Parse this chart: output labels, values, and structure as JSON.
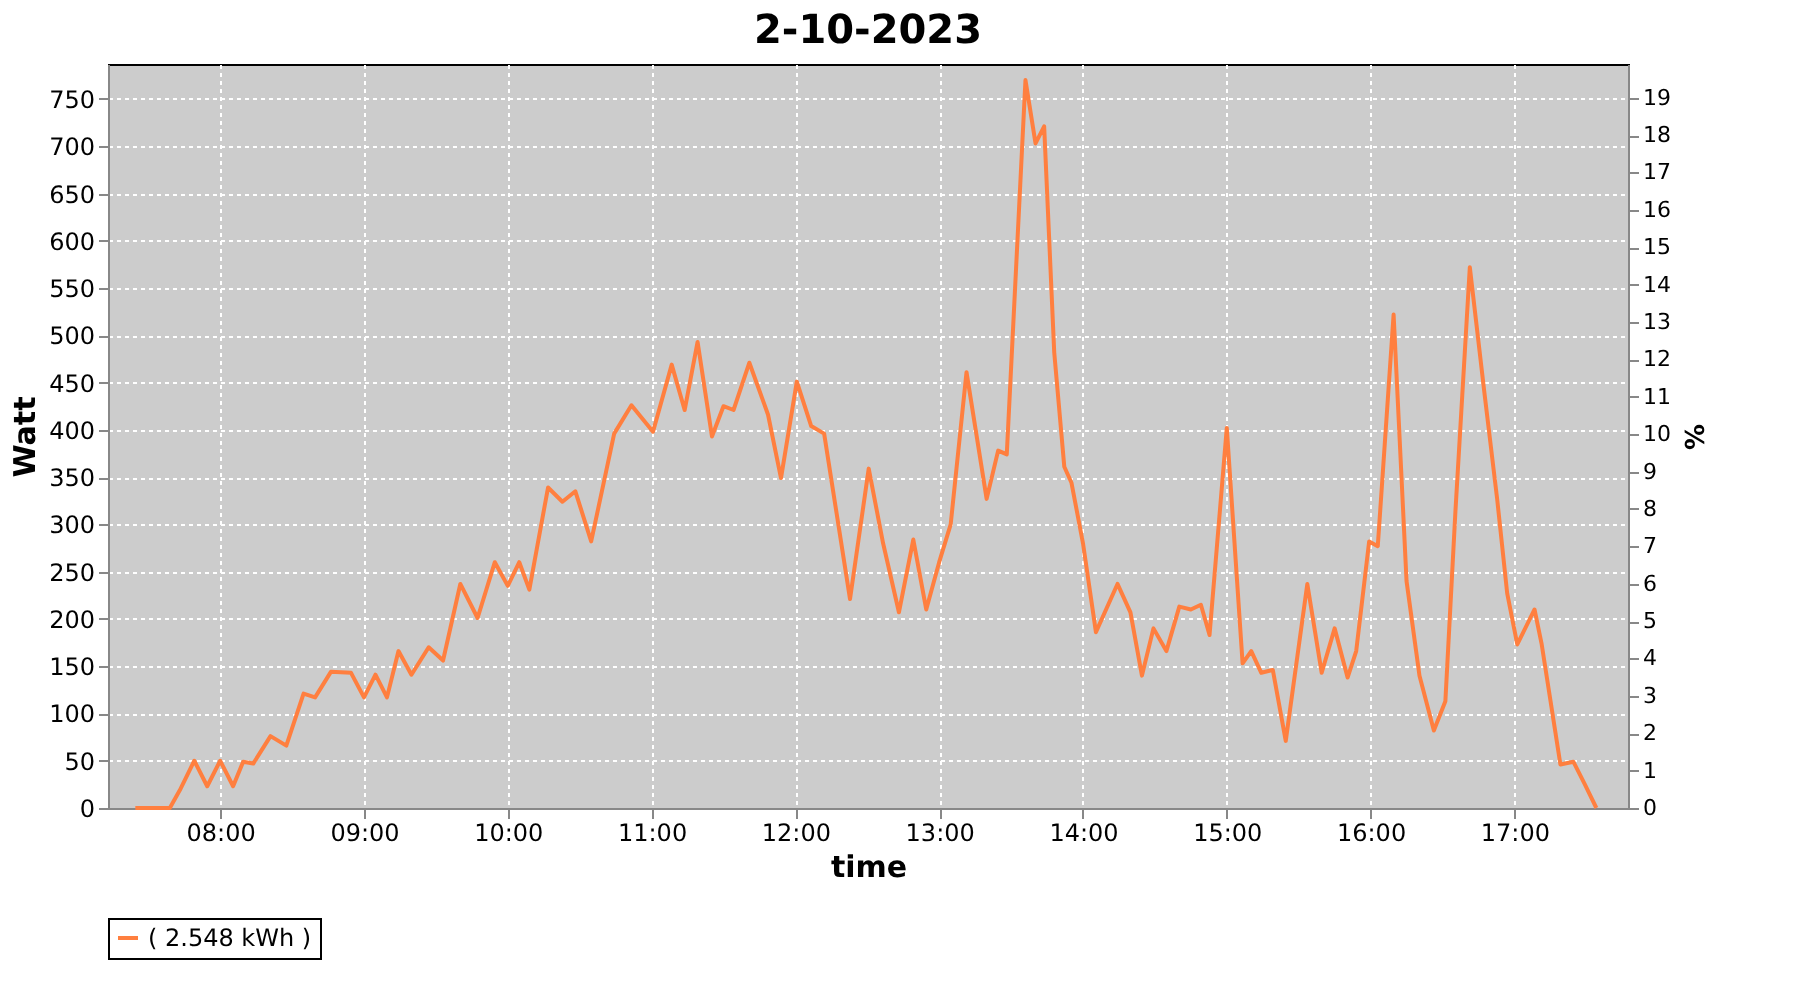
{
  "chart_data": {
    "type": "line",
    "title": "2-10-2023",
    "xlabel": "time",
    "ylabel": "Watt",
    "y2label": "%",
    "x": [
      7.41,
      7.65,
      7.72,
      7.82,
      7.91,
      8.0,
      8.09,
      8.16,
      8.23,
      8.35,
      8.46,
      8.58,
      8.66,
      8.77,
      8.91,
      9.0,
      9.08,
      9.16,
      9.24,
      9.33,
      9.45,
      9.55,
      9.67,
      9.79,
      9.91,
      10.0,
      10.08,
      10.15,
      10.28,
      10.38,
      10.47,
      10.58,
      10.74,
      10.86,
      11.01,
      11.14,
      11.23,
      11.32,
      11.42,
      11.5,
      11.57,
      11.68,
      11.81,
      11.9,
      12.01,
      12.11,
      12.2,
      12.38,
      12.51,
      12.61,
      12.72,
      12.82,
      12.91,
      13.0,
      13.08,
      13.19,
      13.33,
      13.41,
      13.47,
      13.6,
      13.67,
      13.73,
      13.8,
      13.87,
      13.92,
      14.0,
      14.09,
      14.24,
      14.33,
      14.41,
      14.49,
      14.58,
      14.67,
      14.75,
      14.82,
      14.88,
      15.0,
      15.11,
      15.17,
      15.24,
      15.32,
      15.41,
      15.56,
      15.66,
      15.75,
      15.84,
      15.9,
      15.99,
      16.05,
      16.16,
      16.25,
      16.34,
      16.44,
      16.52,
      16.59,
      16.69,
      16.79,
      16.88,
      16.95,
      17.02,
      17.14,
      17.19,
      17.32,
      17.41,
      17.49,
      17.57
    ],
    "series": [
      {
        "name": "( 2.548 kWh )",
        "color": "#ff7f3f",
        "values": [
          0,
          0,
          19,
          50,
          23,
          50,
          23,
          49,
          47,
          76,
          66,
          121,
          117,
          144,
          143,
          117,
          141,
          117,
          166,
          141,
          170,
          156,
          237,
          201,
          260,
          235,
          260,
          231,
          339,
          324,
          335,
          282,
          396,
          426,
          398,
          469,
          421,
          493,
          393,
          425,
          421,
          471,
          416,
          349,
          451,
          404,
          396,
          221,
          359,
          280,
          207,
          284,
          210,
          260,
          300,
          461,
          327,
          378,
          374,
          770,
          703,
          721,
          482,
          361,
          344,
          280,
          186,
          237,
          207,
          140,
          190,
          166,
          213,
          210,
          215,
          183,
          402,
          153,
          166,
          143,
          146,
          71,
          237,
          143,
          190,
          138,
          166,
          282,
          277,
          522,
          240,
          140,
          82,
          113,
          314,
          572,
          441,
          327,
          227,
          173,
          210,
          173,
          46,
          49,
          25,
          0
        ]
      }
    ],
    "xlim": [
      7.22,
      17.79
    ],
    "xticks": [
      {
        "value": 8,
        "label": "08:00"
      },
      {
        "value": 9,
        "label": "09:00"
      },
      {
        "value": 10,
        "label": "10:00"
      },
      {
        "value": 11,
        "label": "11:00"
      },
      {
        "value": 12,
        "label": "12:00"
      },
      {
        "value": 13,
        "label": "13:00"
      },
      {
        "value": 14,
        "label": "14:00"
      },
      {
        "value": 15,
        "label": "15:00"
      },
      {
        "value": 16,
        "label": "16:00"
      },
      {
        "value": 17,
        "label": "17:00"
      }
    ],
    "ylim": [
      0,
      787
    ],
    "yticks": [
      0,
      50,
      100,
      150,
      200,
      250,
      300,
      350,
      400,
      450,
      500,
      550,
      600,
      650,
      700,
      750
    ],
    "y2lim": [
      0,
      19.9
    ],
    "y2ticks": [
      0,
      1,
      2,
      3,
      4,
      5,
      6,
      7,
      8,
      9,
      10,
      11,
      12,
      13,
      14,
      15,
      16,
      17,
      18,
      19
    ],
    "grid": true,
    "legend": "bottom",
    "marker": "none",
    "line_style": "solid"
  }
}
